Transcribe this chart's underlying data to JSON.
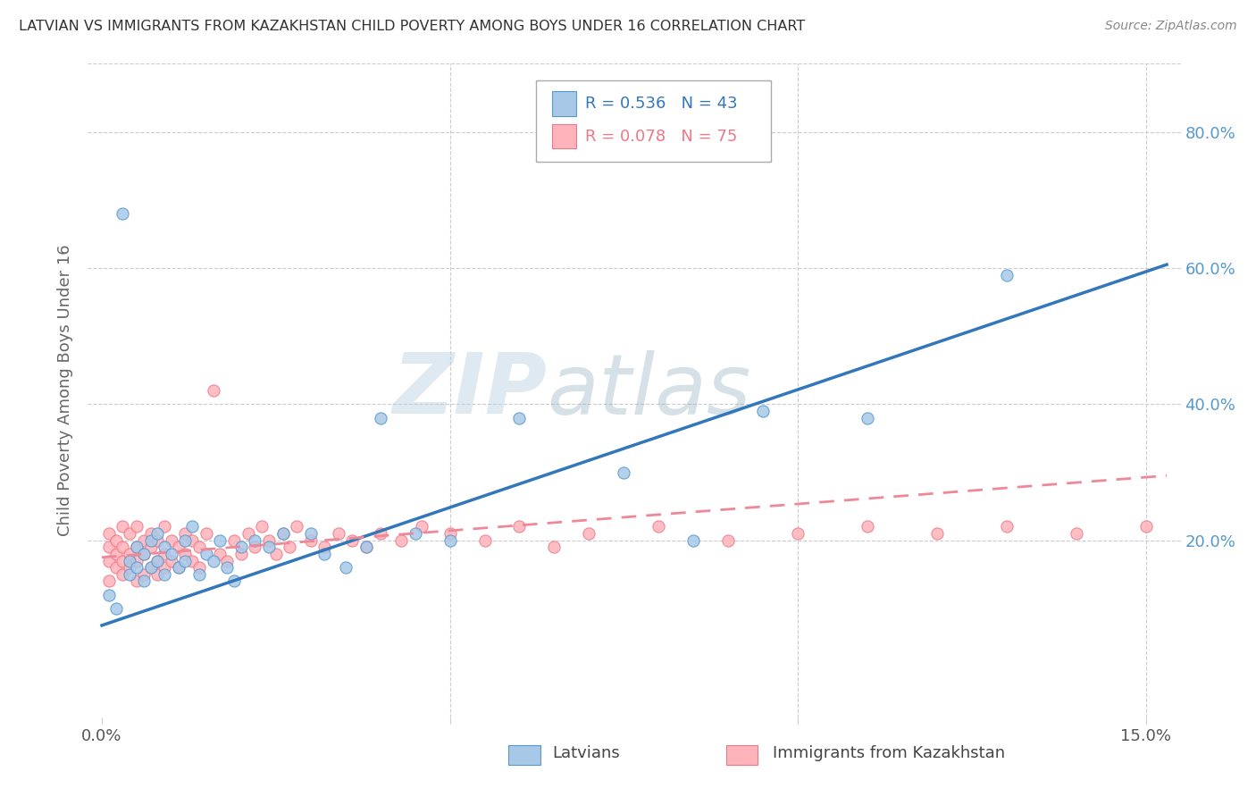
{
  "title": "LATVIAN VS IMMIGRANTS FROM KAZAKHSTAN CHILD POVERTY AMONG BOYS UNDER 16 CORRELATION CHART",
  "source": "Source: ZipAtlas.com",
  "ylabel": "Child Poverty Among Boys Under 16",
  "xlim": [
    -0.002,
    0.155
  ],
  "ylim": [
    -0.06,
    0.9
  ],
  "latvian_color": "#a8c8e8",
  "latvian_edge_color": "#5599cc",
  "kazakh_color": "#ffb3ba",
  "kazakh_edge_color": "#ee7788",
  "latvian_line_color": "#3377bb",
  "kazakh_line_color": "#ee8899",
  "tick_color_right": "#5599cc",
  "grid_color": "#cccccc",
  "title_color": "#333333",
  "source_color": "#888888",
  "ylabel_color": "#666666",
  "watermark_color": "#c8d8e8",
  "legend_R_latvian": "R = 0.536",
  "legend_N_latvian": "N = 43",
  "legend_R_kazakh": "R = 0.078",
  "legend_N_kazakh": "N = 75",
  "legend_label_latvian": "Latvians",
  "legend_label_kazakh": "Immigrants from Kazakhstan",
  "lv_line_x": [
    0.0,
    0.153
  ],
  "lv_line_y": [
    0.075,
    0.605
  ],
  "kz_line_x": [
    0.0,
    0.153
  ],
  "kz_line_y": [
    0.175,
    0.295
  ],
  "latvian_x": [
    0.001,
    0.002,
    0.003,
    0.004,
    0.004,
    0.005,
    0.005,
    0.006,
    0.006,
    0.007,
    0.007,
    0.008,
    0.008,
    0.009,
    0.009,
    0.01,
    0.011,
    0.012,
    0.012,
    0.013,
    0.014,
    0.015,
    0.016,
    0.017,
    0.018,
    0.019,
    0.02,
    0.022,
    0.024,
    0.026,
    0.03,
    0.032,
    0.035,
    0.038,
    0.04,
    0.045,
    0.05,
    0.06,
    0.075,
    0.085,
    0.095,
    0.11,
    0.13
  ],
  "latvian_y": [
    0.12,
    0.1,
    0.68,
    0.15,
    0.17,
    0.16,
    0.19,
    0.18,
    0.14,
    0.2,
    0.16,
    0.17,
    0.21,
    0.15,
    0.19,
    0.18,
    0.16,
    0.2,
    0.17,
    0.22,
    0.15,
    0.18,
    0.17,
    0.2,
    0.16,
    0.14,
    0.19,
    0.2,
    0.19,
    0.21,
    0.21,
    0.18,
    0.16,
    0.19,
    0.38,
    0.21,
    0.2,
    0.38,
    0.3,
    0.2,
    0.39,
    0.38,
    0.59
  ],
  "kazakh_x": [
    0.001,
    0.001,
    0.001,
    0.001,
    0.002,
    0.002,
    0.002,
    0.003,
    0.003,
    0.003,
    0.003,
    0.004,
    0.004,
    0.004,
    0.005,
    0.005,
    0.005,
    0.005,
    0.006,
    0.006,
    0.006,
    0.007,
    0.007,
    0.007,
    0.008,
    0.008,
    0.008,
    0.009,
    0.009,
    0.009,
    0.01,
    0.01,
    0.011,
    0.011,
    0.012,
    0.012,
    0.013,
    0.013,
    0.014,
    0.014,
    0.015,
    0.016,
    0.017,
    0.018,
    0.019,
    0.02,
    0.021,
    0.022,
    0.023,
    0.024,
    0.025,
    0.026,
    0.027,
    0.028,
    0.03,
    0.032,
    0.034,
    0.036,
    0.038,
    0.04,
    0.043,
    0.046,
    0.05,
    0.055,
    0.06,
    0.065,
    0.07,
    0.08,
    0.09,
    0.1,
    0.11,
    0.12,
    0.13,
    0.14,
    0.15
  ],
  "kazakh_y": [
    0.14,
    0.17,
    0.19,
    0.21,
    0.16,
    0.18,
    0.2,
    0.15,
    0.17,
    0.19,
    0.22,
    0.16,
    0.18,
    0.21,
    0.14,
    0.17,
    0.19,
    0.22,
    0.15,
    0.18,
    0.2,
    0.16,
    0.19,
    0.21,
    0.15,
    0.17,
    0.2,
    0.16,
    0.18,
    0.22,
    0.17,
    0.2,
    0.16,
    0.19,
    0.18,
    0.21,
    0.17,
    0.2,
    0.16,
    0.19,
    0.21,
    0.42,
    0.18,
    0.17,
    0.2,
    0.18,
    0.21,
    0.19,
    0.22,
    0.2,
    0.18,
    0.21,
    0.19,
    0.22,
    0.2,
    0.19,
    0.21,
    0.2,
    0.19,
    0.21,
    0.2,
    0.22,
    0.21,
    0.2,
    0.22,
    0.19,
    0.21,
    0.22,
    0.2,
    0.21,
    0.22,
    0.21,
    0.22,
    0.21,
    0.22
  ]
}
